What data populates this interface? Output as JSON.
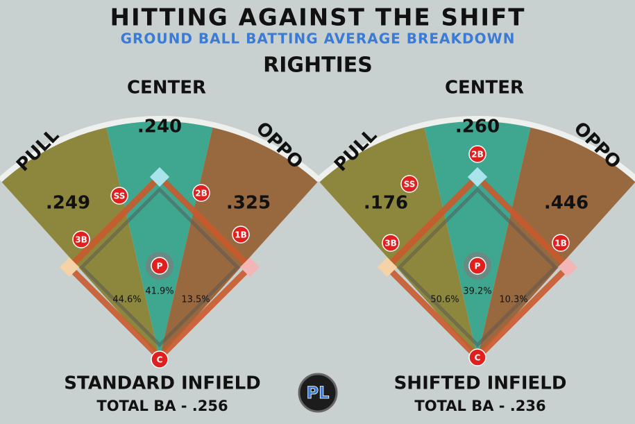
{
  "header": {
    "title": "HITTING AGAINST THE SHIFT",
    "subtitle": "GROUND BALL BATTING AVERAGE BREAKDOWN",
    "group": "RIGHTIES"
  },
  "panels": [
    {
      "zones": [
        {
          "label": "PULL",
          "average": ".249",
          "share": "44.6%"
        },
        {
          "label": "CENTER",
          "average": ".240",
          "share": "41.9%"
        },
        {
          "label": "OPPO",
          "average": ".325",
          "share": "13.5%"
        }
      ],
      "positions": [
        "SS",
        "2B",
        "3B",
        "1B",
        "P",
        "C"
      ],
      "title": "STANDARD INFIELD",
      "total": "TOTAL BA - .256"
    },
    {
      "zones": [
        {
          "label": "PULL",
          "average": ".176",
          "share": "50.6%"
        },
        {
          "label": "CENTER",
          "average": ".260",
          "share": "39.2%"
        },
        {
          "label": "OPPO",
          "average": ".446",
          "share": "10.3%"
        }
      ],
      "positions": [
        "2B",
        "SS",
        "3B",
        "1B",
        "P",
        "C"
      ],
      "title": "SHIFTED INFIELD",
      "total": "TOTAL BA - .236"
    }
  ],
  "logo": "PL"
}
